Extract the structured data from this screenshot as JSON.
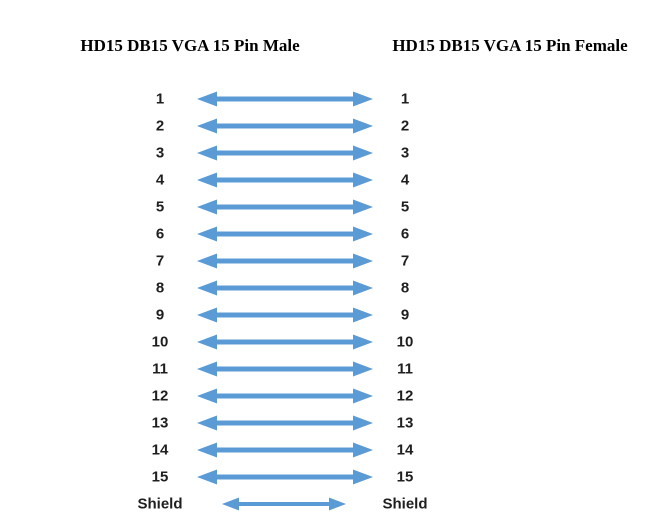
{
  "diagram": {
    "title_left": "HD15 DB15 VGA 15 Pin Male",
    "title_right": "HD15 DB15 VGA 15 Pin Female",
    "arrow_color": "#5B9BD5",
    "text_color": "#1f1f1f",
    "background_color": "#ffffff",
    "connection_type": "bidirectional",
    "rows": [
      {
        "left": "1",
        "right": "1",
        "kind": "pin"
      },
      {
        "left": "2",
        "right": "2",
        "kind": "pin"
      },
      {
        "left": "3",
        "right": "3",
        "kind": "pin"
      },
      {
        "left": "4",
        "right": "4",
        "kind": "pin"
      },
      {
        "left": "5",
        "right": "5",
        "kind": "pin"
      },
      {
        "left": "6",
        "right": "6",
        "kind": "pin"
      },
      {
        "left": "7",
        "right": "7",
        "kind": "pin"
      },
      {
        "left": "8",
        "right": "8",
        "kind": "pin"
      },
      {
        "left": "9",
        "right": "9",
        "kind": "pin"
      },
      {
        "left": "10",
        "right": "10",
        "kind": "pin"
      },
      {
        "left": "11",
        "right": "11",
        "kind": "pin"
      },
      {
        "left": "12",
        "right": "12",
        "kind": "pin"
      },
      {
        "left": "13",
        "right": "13",
        "kind": "pin"
      },
      {
        "left": "14",
        "right": "14",
        "kind": "pin"
      },
      {
        "left": "15",
        "right": "15",
        "kind": "pin"
      },
      {
        "left": "Shield",
        "right": "Shield",
        "kind": "shield"
      }
    ]
  }
}
